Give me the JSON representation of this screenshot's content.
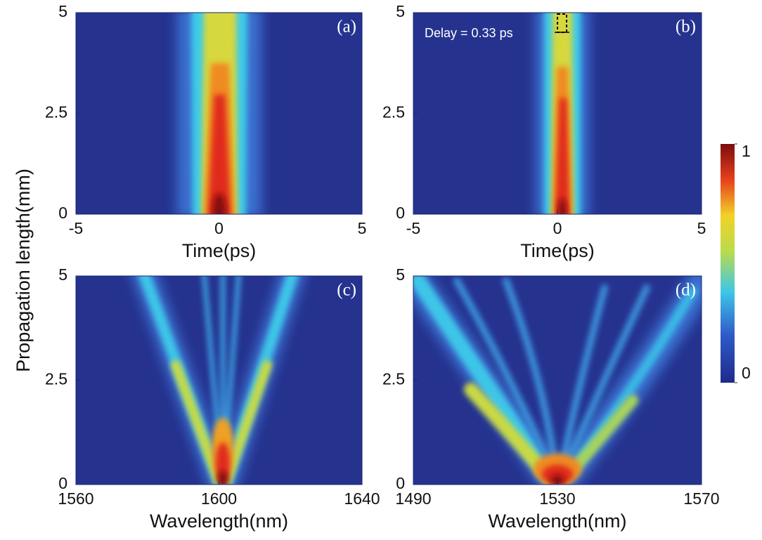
{
  "ylabel": "Propagation length(mm)",
  "chart_data": [
    {
      "type": "heatmap",
      "panel": "(a)",
      "xlabel": "Time(ps)",
      "xlim": [
        -5,
        5
      ],
      "xticks": [
        -5,
        0,
        5
      ],
      "ylim": [
        0,
        5
      ],
      "yticks": [
        0,
        2.5,
        5
      ]
    },
    {
      "type": "heatmap",
      "panel": "(b)",
      "xlabel": "Time(ps)",
      "xlim": [
        -5,
        5
      ],
      "xticks": [
        -5,
        0,
        5
      ],
      "ylim": [
        0,
        5
      ],
      "yticks": [
        0,
        2.5,
        5
      ],
      "annotation": "Delay = 0.33 ps"
    },
    {
      "type": "heatmap",
      "panel": "(c)",
      "xlabel": "Wavelength(nm)",
      "xlim": [
        1560,
        1640
      ],
      "xticks": [
        1560,
        1600,
        1640
      ],
      "ylim": [
        0,
        5
      ],
      "yticks": [
        0,
        2.5,
        5
      ]
    },
    {
      "type": "heatmap",
      "panel": "(d)",
      "xlabel": "Wavelength(nm)",
      "xlim": [
        1490,
        1570
      ],
      "xticks": [
        1490,
        1530,
        1570
      ],
      "ylim": [
        0,
        5
      ],
      "yticks": [
        0,
        2.5,
        5
      ]
    },
    {
      "type": "colorbar",
      "ylim": [
        0,
        1
      ],
      "yticks": [
        0,
        1
      ]
    }
  ]
}
